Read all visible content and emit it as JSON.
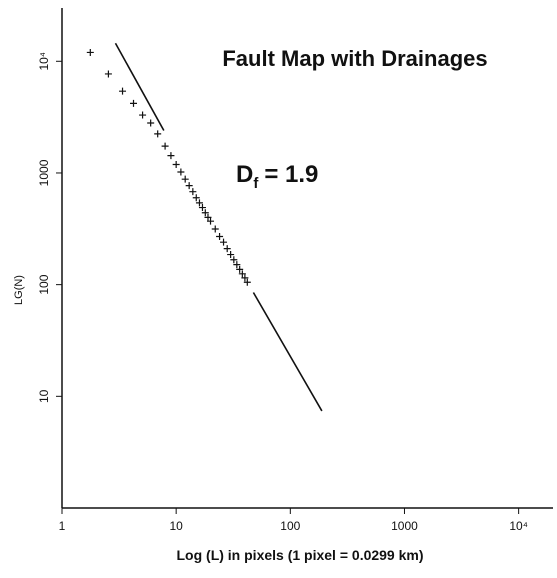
{
  "chart_data": {
    "type": "scatter",
    "title": "Fault Map with Drainages",
    "annotation": {
      "symbol": "D",
      "subscript": "f",
      "text": "= 1.9"
    },
    "x_label": "Log (L) in pixels  (1 pixel = 0.0299 km)",
    "y_label": "LG(N)",
    "log_x": true,
    "log_y": true,
    "color": "#111111",
    "xlim": [
      1,
      20000
    ],
    "ylim": [
      1,
      30000
    ],
    "xticks": [
      1,
      10,
      100,
      1000,
      {
        "value": 10000,
        "label": "10⁴"
      }
    ],
    "yticks": [
      10,
      100,
      1000,
      {
        "value": 10000,
        "label": "10⁴"
      }
    ],
    "series": [
      {
        "name": "data",
        "x": [
          1.77,
          2.55,
          3.39,
          4.23,
          5.08,
          5.98,
          6.89,
          8,
          9,
          10,
          11,
          12,
          13,
          14,
          15,
          16,
          17,
          18,
          19,
          20,
          22,
          24,
          26,
          28,
          30,
          32,
          34,
          36,
          38,
          40,
          42
        ],
        "values": [
          12000,
          7700,
          5400,
          4200,
          3300,
          2800,
          2240,
          1740,
          1430,
          1190,
          1020,
          880,
          770,
          680,
          600,
          540,
          490,
          440,
          400,
          370,
          315,
          270,
          240,
          210,
          186,
          167,
          151,
          137,
          125,
          115,
          105
        ]
      },
      {
        "name": "fit",
        "x": [
          2.94,
          7.8,
          null,
          47.5,
          189
        ],
        "values": [
          14500,
          2400,
          null,
          85,
          7.4
        ]
      }
    ]
  }
}
